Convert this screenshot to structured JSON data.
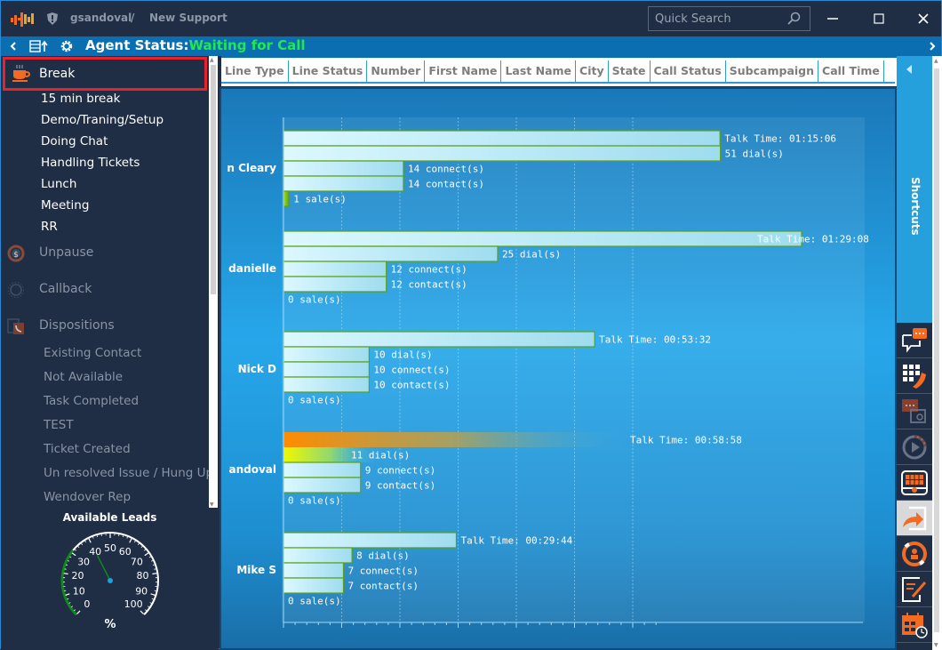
{
  "titlebar": {
    "user": "gsandoval",
    "separator": "/",
    "campaign": "New Support",
    "search_placeholder": "Quick Search"
  },
  "statusbar": {
    "label": "Agent Status:",
    "value": "Waiting for Call",
    "value_color": "#21e84c"
  },
  "sidebar": {
    "break": {
      "label": "Break",
      "items": [
        "15 min break",
        "Demo/Traning/Setup",
        "Doing Chat",
        "Handling Tickets",
        "Lunch",
        "Meeting",
        "RR"
      ]
    },
    "unpause": "Unpause",
    "callback": "Callback",
    "dispositions": {
      "label": "Dispositions",
      "items": [
        "Existing Contact",
        "Not Available",
        "Task Completed",
        "TEST",
        "Ticket Created",
        "Un resolved Issue / Hung Up",
        "Wendover Rep"
      ]
    },
    "available_leads": {
      "title": "Available Leads",
      "unit": "%",
      "value_percent": 40,
      "ticks": [
        "0",
        "10",
        "20",
        "30",
        "40",
        "50",
        "60",
        "70",
        "80",
        "90",
        "100"
      ]
    }
  },
  "grid": {
    "columns": [
      "Line Type",
      "Line Status",
      "Number",
      "First Name",
      "Last Name",
      "City",
      "State",
      "Call Status",
      "Subcampaign",
      "Call Time"
    ]
  },
  "shortcuts": {
    "label": "Shortcuts",
    "icons": [
      "chat-icon",
      "dialpad-phone-icon",
      "sms-icon",
      "playback-icon",
      "calendar-keypad-icon",
      "transfer-icon",
      "agent-refresh-icon",
      "notes-icon",
      "schedule-icon"
    ],
    "active_index": 5
  },
  "chart_data": {
    "type": "bar",
    "orientation": "horizontal",
    "title": "",
    "xlabel": "",
    "ylabel": "",
    "grid": true,
    "agents": [
      {
        "name": "n Cleary",
        "talk_time": "01:15:06",
        "talk_seconds": 4506,
        "dials": 51,
        "connects": 14,
        "contacts": 14,
        "sales": 1
      },
      {
        "name": "danielle",
        "talk_time": "01:29:08",
        "talk_seconds": 5348,
        "dials": 25,
        "connects": 12,
        "contacts": 12,
        "sales": 0
      },
      {
        "name": "Nick D",
        "talk_time": "00:53:32",
        "talk_seconds": 3212,
        "dials": 10,
        "connects": 10,
        "contacts": 10,
        "sales": 0
      },
      {
        "name": "andoval",
        "talk_time": "00:58:58",
        "talk_seconds": 3538,
        "dials": 11,
        "connects": 9,
        "contacts": 9,
        "sales": 0,
        "highlighted": true
      },
      {
        "name": "Mike S",
        "talk_time": "00:29:44",
        "talk_seconds": 1784,
        "dials": 8,
        "connects": 7,
        "contacts": 7,
        "sales": 0
      }
    ],
    "labels": {
      "talk": "Talk Time: ",
      "dials": " dial(s)",
      "connects": " connect(s)",
      "contacts": " contact(s)",
      "sales": " sale(s)"
    }
  }
}
